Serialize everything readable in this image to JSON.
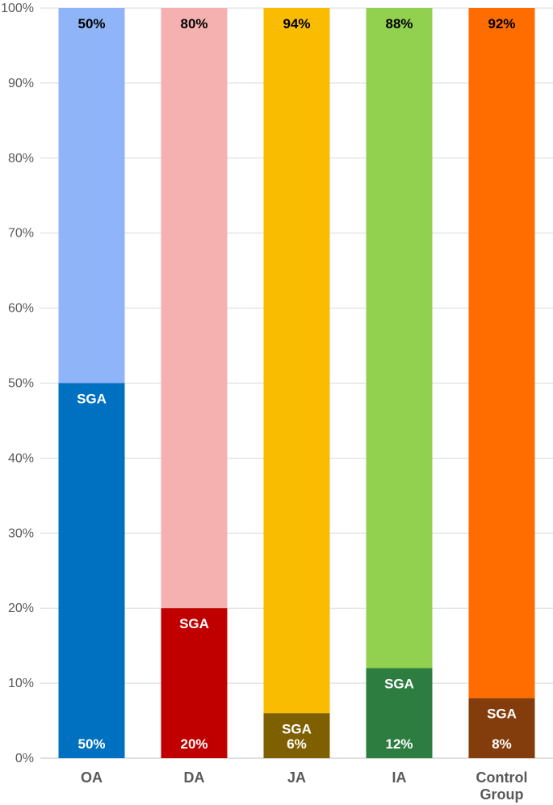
{
  "chart_data": {
    "type": "bar",
    "stacked": true,
    "percent_stacked": true,
    "categories": [
      "OA",
      "DA",
      "JA",
      "IA",
      "Control Group"
    ],
    "category_lines": [
      [
        "OA"
      ],
      [
        "DA"
      ],
      [
        "JA"
      ],
      [
        "IA"
      ],
      [
        "Control",
        "Group"
      ]
    ],
    "sga_values": [
      50,
      20,
      6,
      12,
      8
    ],
    "other_values": [
      50,
      80,
      94,
      88,
      92
    ],
    "sga_labels": [
      "50%",
      "20%",
      "6%",
      "12%",
      "8%"
    ],
    "other_labels": [
      "50%",
      "80%",
      "94%",
      "88%",
      "92%"
    ],
    "segment_label": "SGA",
    "sga_colors": [
      "#0070c0",
      "#c00000",
      "#7f6000",
      "#2e7d40",
      "#833c0b"
    ],
    "other_colors": [
      "#8fb4f8",
      "#f4b1b0",
      "#f9bc00",
      "#92d050",
      "#ff6d00"
    ],
    "y_ticks": [
      "0%",
      "10%",
      "20%",
      "30%",
      "40%",
      "50%",
      "60%",
      "70%",
      "80%",
      "90%",
      "100%"
    ],
    "ylim": [
      0,
      100
    ],
    "grid": true,
    "title": "",
    "xlabel": "",
    "ylabel": ""
  }
}
